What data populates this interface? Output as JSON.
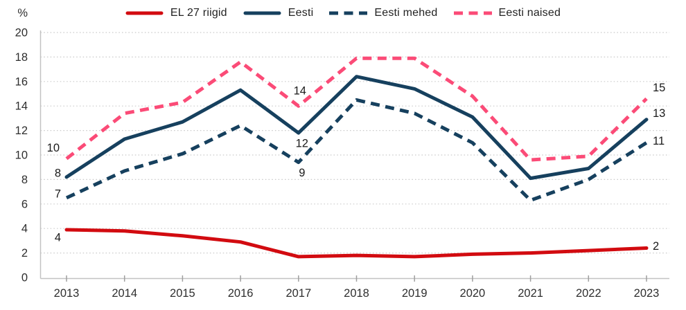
{
  "page": {
    "background": "#ffffff"
  },
  "chart_data": {
    "type": "line",
    "unit_label": "%",
    "x_categories": [
      "2013",
      "2014",
      "2015",
      "2016",
      "2017",
      "2018",
      "2019",
      "2020",
      "2021",
      "2022",
      "2023"
    ],
    "ylim": [
      0,
      20
    ],
    "ytick_step": 2,
    "grid": "horizontal-dotted",
    "legend_position": "top-center",
    "series": [
      {
        "name": "EL 27 riigid",
        "color": "#d20b10",
        "style": "solid",
        "values": [
          3.9,
          3.8,
          3.4,
          2.9,
          1.7,
          1.8,
          1.7,
          1.9,
          2.0,
          2.2,
          2.4
        ]
      },
      {
        "name": "Eesti",
        "color": "#16405e",
        "style": "solid",
        "values": [
          8.2,
          11.3,
          12.7,
          15.3,
          11.8,
          16.4,
          15.4,
          13.1,
          8.1,
          8.9,
          12.9
        ]
      },
      {
        "name": "Eesti mehed",
        "color": "#16405e",
        "style": "dashed",
        "values": [
          6.5,
          8.7,
          10.1,
          12.4,
          9.4,
          14.5,
          13.4,
          11.0,
          6.3,
          8.0,
          11.0
        ]
      },
      {
        "name": "Eesti naised",
        "color": "#fb4b77",
        "style": "dashed",
        "values": [
          9.7,
          13.4,
          14.3,
          17.6,
          14.0,
          17.9,
          17.9,
          14.8,
          9.6,
          9.9,
          14.6
        ]
      }
    ],
    "point_labels": [
      {
        "text": "10",
        "series": 3,
        "x_index": 0,
        "place": "left-up"
      },
      {
        "text": "8",
        "series": 1,
        "x_index": 0,
        "place": "left"
      },
      {
        "text": "7",
        "series": 2,
        "x_index": 0,
        "place": "left"
      },
      {
        "text": "4",
        "series": 0,
        "x_index": 0,
        "place": "left-down"
      },
      {
        "text": "14",
        "series": 3,
        "x_index": 4,
        "place": "above"
      },
      {
        "text": "12",
        "series": 1,
        "x_index": 4,
        "place": "below"
      },
      {
        "text": "9",
        "series": 2,
        "x_index": 4,
        "place": "below"
      },
      {
        "text": "15",
        "series": 3,
        "x_index": 10,
        "place": "right-up"
      },
      {
        "text": "13",
        "series": 1,
        "x_index": 10,
        "place": "right"
      },
      {
        "text": "11",
        "series": 2,
        "x_index": 10,
        "place": "right-flat"
      },
      {
        "text": "2",
        "series": 0,
        "x_index": 10,
        "place": "right-flat"
      }
    ],
    "axis_colors": {
      "grid": "#cbcbcb",
      "axis_line": "#c2c2c2",
      "tick": "#9f9f9f",
      "text": "#2e2e2e"
    }
  }
}
